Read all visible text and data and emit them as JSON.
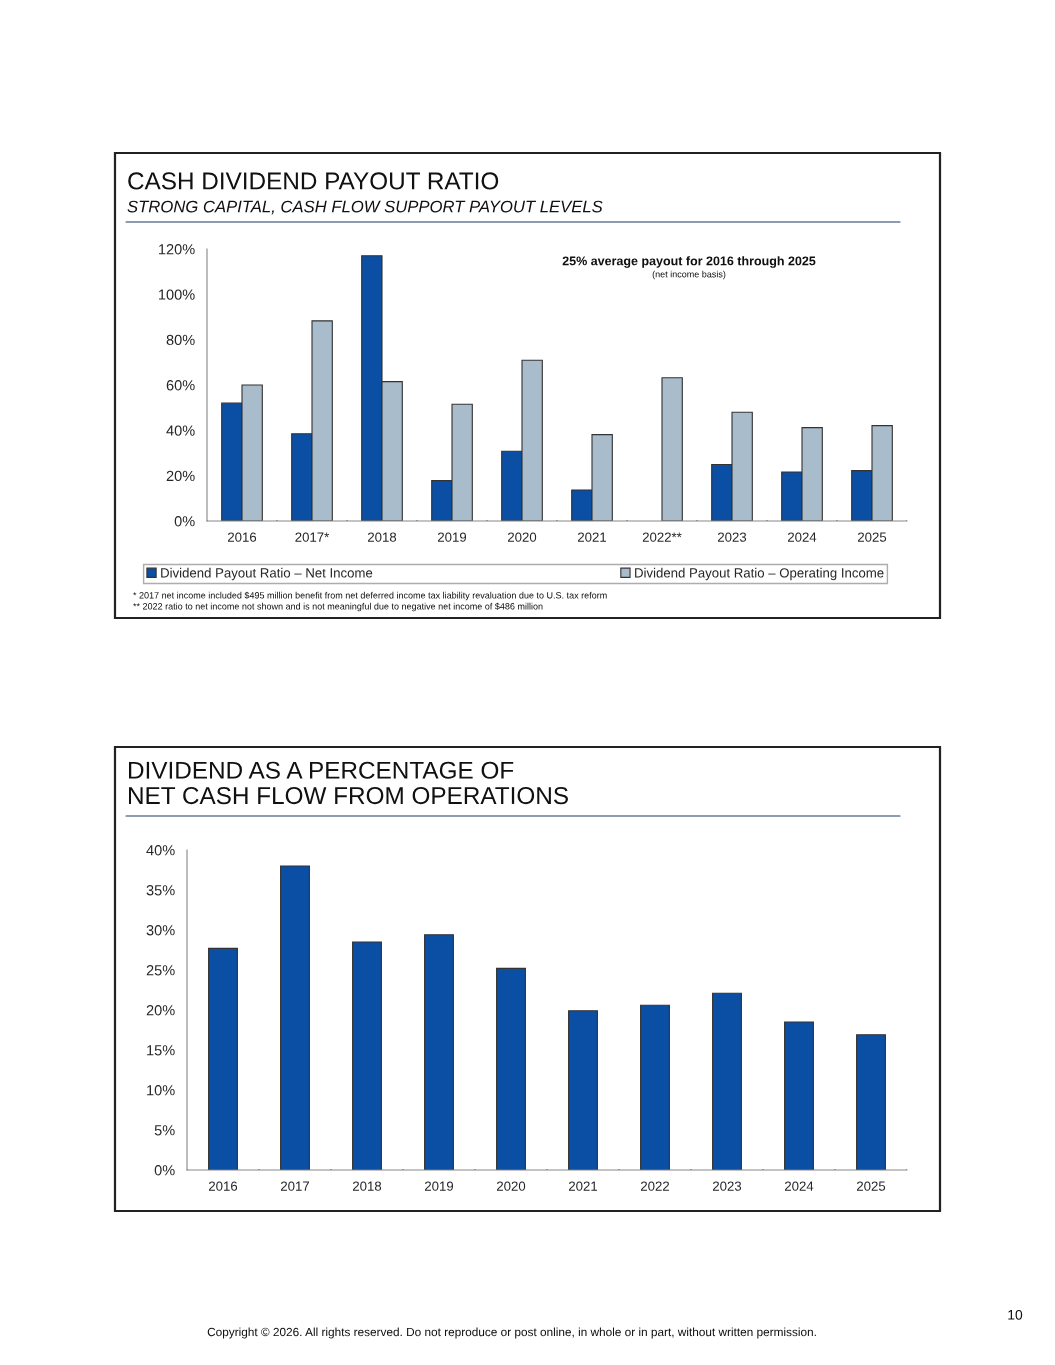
{
  "chart_data": [
    {
      "type": "bar",
      "title": "CASH DIVIDEND PAYOUT RATIO",
      "subtitle": "STRONG CAPITAL, CASH FLOW SUPPORT PAYOUT LEVELS",
      "categories": [
        "2016",
        "2017*",
        "2018",
        "2019",
        "2020",
        "2021",
        "2022**",
        "2023",
        "2024",
        "2025"
      ],
      "series": [
        {
          "name": "Dividend Payout Ratio – Net Income",
          "color": "#0a4fa3",
          "values": [
            52,
            38.5,
            117,
            17.8,
            30.8,
            13.7,
            null,
            24.9,
            21.6,
            22.2
          ]
        },
        {
          "name": "Dividend Payout Ratio – Operating Income",
          "color": "#a9bccb",
          "values": [
            60,
            88.3,
            61.5,
            51.5,
            70.9,
            38.1,
            63.2,
            48,
            41.2,
            42.1
          ]
        }
      ],
      "ylim": [
        0,
        120
      ],
      "yticks": [
        {
          "value": 0,
          "label": "0%"
        },
        {
          "value": 20,
          "label": "20%"
        },
        {
          "value": 40,
          "label": "40%"
        },
        {
          "value": 60,
          "label": "60%"
        },
        {
          "value": 80,
          "label": "80%"
        },
        {
          "value": 100,
          "label": "100%"
        },
        {
          "value": 120,
          "label": "120%"
        }
      ],
      "legend": "bottom",
      "grid": false,
      "annotations": [
        "25% average payout for 2016 through 2025",
        "(net income basis)",
        "* 2017 net income included $495 million benefit from net deferred income tax liability revaluation due to U.S. tax reform",
        "** 2022 ratio to net income not shown and is not meaningful due to negative net income of $486 million"
      ]
    },
    {
      "type": "bar",
      "title": "DIVIDEND AS A PERCENTAGE OF\nNET CASH FLOW FROM OPERATIONS",
      "categories": [
        "2016",
        "2017",
        "2018",
        "2019",
        "2020",
        "2021",
        "2022",
        "2023",
        "2024",
        "2025"
      ],
      "values": [
        27.7,
        38.0,
        28.5,
        29.4,
        25.2,
        19.9,
        20.6,
        22.1,
        18.5,
        16.9
      ],
      "color": "#0a4fa3",
      "ylim": [
        0,
        40
      ],
      "yticks": [
        {
          "value": 0,
          "label": "0%"
        },
        {
          "value": 5,
          "label": "5%"
        },
        {
          "value": 10,
          "label": "10%"
        },
        {
          "value": 15,
          "label": "15%"
        },
        {
          "value": 20,
          "label": "20%"
        },
        {
          "value": 25,
          "label": "25%"
        },
        {
          "value": 30,
          "label": "30%"
        },
        {
          "value": 35,
          "label": "35%"
        },
        {
          "value": 40,
          "label": "40%"
        }
      ],
      "legend": false,
      "grid": false,
      "annotations": [
        "Copyright © 2026. All rights reserved. Do not reproduce or post online, in whole or in part, without written permission.",
        "10"
      ]
    }
  ]
}
